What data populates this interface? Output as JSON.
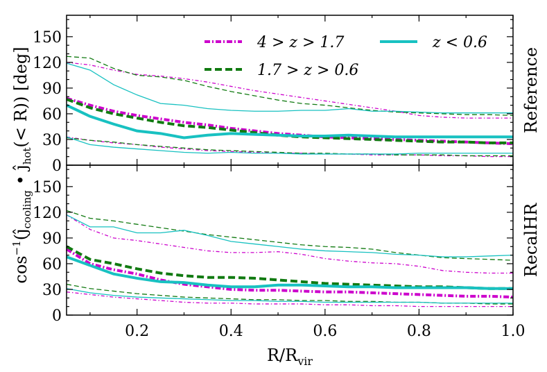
{
  "chart_data": {
    "type": "line",
    "xlabel": "R/R_vir",
    "ylabel": "cos^{-1}(ĵ_cooling • ĵ_hot(< R)) [deg]",
    "xlim": [
      0.05,
      1.0
    ],
    "ylim": [
      0,
      175
    ],
    "xticks": [
      0.2,
      0.4,
      0.6,
      0.8,
      1.0
    ],
    "xtick_labels": [
      "0.2",
      "0.4",
      "0.6",
      "0.8",
      "1.0"
    ],
    "yticks": [
      0,
      30,
      60,
      90,
      120,
      150
    ],
    "ytick_labels": [
      "0",
      "30",
      "60",
      "90",
      "120",
      "150"
    ],
    "series_styles": [
      {
        "name": "4 > z > 1.7",
        "color": "#cc00cc",
        "dash": "dashdot"
      },
      {
        "name": "1.7 > z > 0.6",
        "color": "#117a11",
        "dash": "dashed"
      },
      {
        "name": "z < 0.6",
        "color": "#18c1c1",
        "dash": "solid"
      }
    ],
    "legend": [
      {
        "label": "4 > z > 1.7",
        "series": 0
      },
      {
        "label": "1.7 > z > 0.6",
        "series": 1
      },
      {
        "label": "z < 0.6",
        "series": 2
      }
    ],
    "x": [
      0.05,
      0.1,
      0.15,
      0.2,
      0.25,
      0.3,
      0.35,
      0.4,
      0.45,
      0.5,
      0.55,
      0.6,
      0.65,
      0.7,
      0.75,
      0.8,
      0.85,
      0.9,
      0.95,
      1.0
    ],
    "panels": [
      {
        "label": "Reference",
        "series": [
          {
            "name": "4 > z > 1.7",
            "median": [
              78,
              70,
              63,
              58,
              54,
              50,
              47,
              43,
              40,
              37,
              35,
              33,
              32,
              31,
              30,
              29,
              28,
              27,
              26,
              25
            ],
            "upper": [
              120,
              117,
              111,
              106,
              104,
              101,
              97,
              92,
              87,
              83,
              79,
              75,
              71,
              67,
              63,
              58,
              56,
              55,
              55,
              55
            ],
            "lower": [
              33,
              29,
              26,
              24,
              21,
              19,
              17,
              16,
              15,
              14,
              14,
              13,
              13,
              12,
              12,
              12,
              11,
              11,
              10,
              10
            ]
          },
          {
            "name": "1.7 > z > 0.6",
            "median": [
              77,
              67,
              60,
              55,
              50,
              46,
              44,
              41,
              38,
              35,
              33,
              32,
              31,
              30,
              29,
              28,
              27,
              27,
              26,
              26
            ],
            "upper": [
              127,
              125,
              113,
              105,
              103,
              99,
              92,
              86,
              81,
              76,
              72,
              70,
              67,
              64,
              62,
              61,
              60,
              59,
              59,
              58
            ],
            "lower": [
              32,
              29,
              27,
              24,
              22,
              20,
              18,
              17,
              16,
              15,
              14,
              14,
              13,
              13,
              12,
              12,
              12,
              11,
              11,
              11
            ]
          },
          {
            "name": "z < 0.6",
            "median": [
              70,
              57,
              48,
              40,
              37,
              32,
              35,
              37,
              36,
              35,
              34,
              34,
              35,
              34,
              33,
              33,
              33,
              33,
              33,
              33
            ],
            "upper": [
              119,
              111,
              94,
              82,
              72,
              70,
              66,
              64,
              63,
              63,
              64,
              64,
              66,
              63,
              63,
              62,
              61,
              61,
              61,
              61
            ],
            "lower": [
              33,
              24,
              21,
              19,
              17,
              15,
              14,
              15,
              14,
              14,
              13,
              13,
              13,
              13,
              13,
              14,
              14,
              14,
              14,
              14
            ]
          }
        ]
      },
      {
        "label": "RecalHR",
        "series": [
          {
            "name": "4 > z > 1.7",
            "median": [
              77,
              60,
              53,
              48,
              41,
              36,
              33,
              30,
              29,
              29,
              28,
              27,
              27,
              26,
              25,
              24,
              23,
              22,
              22,
              21
            ],
            "upper": [
              117,
              100,
              90,
              87,
              83,
              79,
              75,
              73,
              73,
              74,
              71,
              66,
              63,
              61,
              60,
              57,
              52,
              50,
              49,
              49
            ],
            "lower": [
              27,
              24,
              21,
              19,
              17,
              15,
              14,
              14,
              13,
              13,
              13,
              12,
              12,
              11,
              11,
              10,
              10,
              10,
              10,
              10
            ]
          },
          {
            "name": "1.7 > z > 0.6",
            "median": [
              80,
              65,
              60,
              54,
              49,
              46,
              44,
              44,
              43,
              41,
              39,
              37,
              36,
              35,
              34,
              33,
              33,
              32,
              31,
              31
            ],
            "upper": [
              122,
              113,
              110,
              106,
              102,
              98,
              94,
              91,
              88,
              85,
              82,
              80,
              79,
              77,
              73,
              70,
              67,
              66,
              65,
              64
            ],
            "lower": [
              36,
              31,
              28,
              25,
              23,
              21,
              20,
              19,
              18,
              18,
              17,
              17,
              16,
              16,
              15,
              15,
              14,
              14,
              13,
              13
            ]
          },
          {
            "name": "z < 0.6",
            "median": [
              68,
              58,
              48,
              43,
              39,
              38,
              35,
              33,
              33,
              35,
              35,
              34,
              33,
              33,
              32,
              32,
              32,
              32,
              31,
              31
            ],
            "upper": [
              117,
              103,
              103,
              96,
              96,
              99,
              93,
              86,
              83,
              80,
              77,
              75,
              74,
              73,
              71,
              70,
              68,
              68,
              69,
              70
            ],
            "lower": [
              31,
              26,
              23,
              21,
              20,
              19,
              18,
              17,
              17,
              16,
              16,
              15,
              15,
              15,
              15,
              15,
              14,
              14,
              14,
              14
            ]
          }
        ]
      }
    ]
  }
}
